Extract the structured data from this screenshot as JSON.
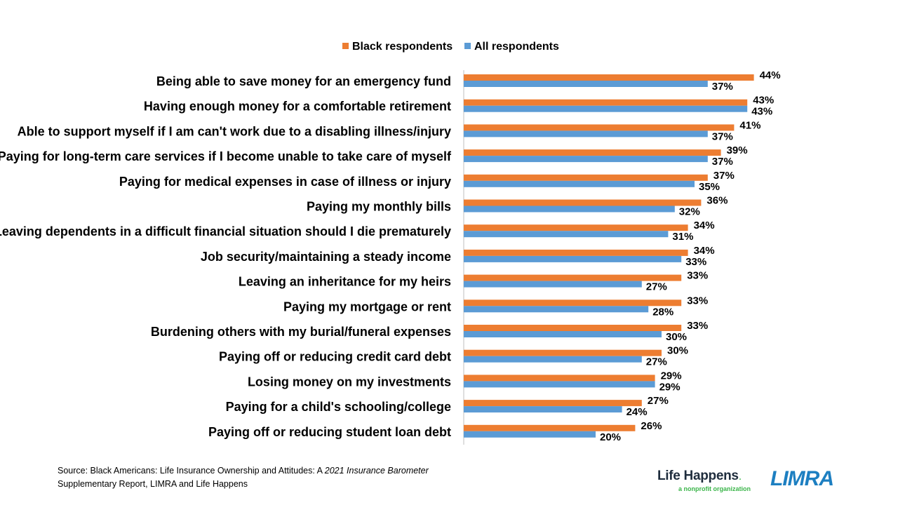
{
  "chart_data": {
    "type": "bar",
    "orientation": "horizontal",
    "categories": [
      "Being able to save money for an emergency fund",
      "Having enough money for a comfortable retirement",
      "Able to support myself if I am can't work due to a disabling illness/injury",
      "Paying for long-term care services if I become unable to take care of myself",
      "Paying for medical expenses in case of illness or injury",
      "Paying my monthly bills",
      "Leaving dependents in a difficult financial situation should I die prematurely",
      "Job security/maintaining a steady income",
      "Leaving an inheritance for my heirs",
      "Paying my mortgage or rent",
      "Burdening others with my burial/funeral expenses",
      "Paying off or reducing credit card debt",
      "Losing money on my investments",
      "Paying for a child's schooling/college",
      "Paying off or reducing student loan debt"
    ],
    "series": [
      {
        "name": "Black respondents",
        "color": "#ed7d31",
        "values": [
          44,
          43,
          41,
          39,
          37,
          36,
          34,
          34,
          33,
          33,
          33,
          30,
          29,
          27,
          26
        ],
        "labels": [
          "44%",
          "43%",
          "41%",
          "39%",
          "37%",
          "36%",
          "34%",
          "34%",
          "33%",
          "33%",
          "33%",
          "30%",
          "29%",
          "27%",
          "26%"
        ]
      },
      {
        "name": "All respondents",
        "color": "#5b9bd5",
        "values": [
          37,
          43,
          37,
          37,
          35,
          32,
          31,
          33,
          27,
          28,
          30,
          27,
          29,
          24,
          20
        ],
        "labels": [
          "37%",
          "43%",
          "37%",
          "37%",
          "35%",
          "32%",
          "31%",
          "33%",
          "27%",
          "28%",
          "30%",
          "27%",
          "29%",
          "24%",
          "20%"
        ]
      }
    ],
    "xlim": [
      0,
      100
    ],
    "grid": false,
    "legend_position": "top"
  },
  "footer": {
    "source_part1": "Source: Black Americans: Life Insurance Ownership and Attitudes: A ",
    "source_italic": "2021 Insurance Barometer",
    "source_part2": "Supplementary Report, LIMRA and Life Happens",
    "logo_life_happens": "Life Happens",
    "logo_life_happens_sub": "a nonprofit organization",
    "logo_limra": "LIMRA"
  }
}
